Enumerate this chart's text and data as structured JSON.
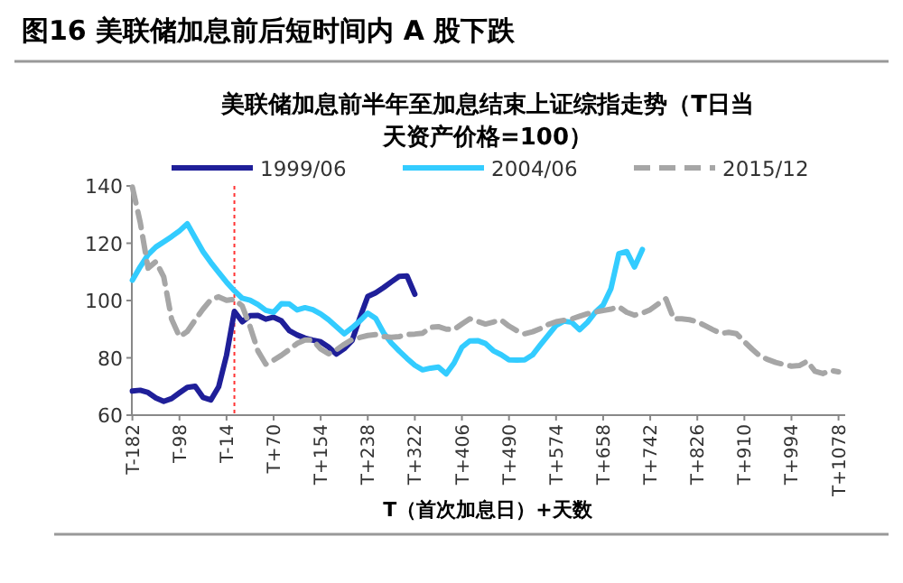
{
  "chart_data": {
    "type": "line",
    "title": "图16 美联储加息前后短时间内 A 股下跌",
    "subtitle": "美联储加息前半年至加息结束上证综指走势（T日当天资产价格=100）",
    "xlabel": "T（首次加息日）+天数",
    "categories": [
      "T-182",
      null,
      null,
      null,
      null,
      null,
      "T-98",
      null,
      null,
      null,
      null,
      null,
      "T-14",
      null,
      null,
      null,
      null,
      null,
      "T+70",
      null,
      null,
      null,
      null,
      null,
      "T+154",
      null,
      null,
      null,
      null,
      null,
      "T+238",
      null,
      null,
      null,
      null,
      null,
      "T+322",
      null,
      null,
      null,
      null,
      null,
      "T+406",
      null,
      null,
      null,
      null,
      null,
      "T+490",
      null,
      null,
      null,
      null,
      null,
      "T+574",
      null,
      null,
      null,
      null,
      null,
      "T+658",
      null,
      null,
      null,
      null,
      null,
      "T+742",
      null,
      null,
      null,
      null,
      null,
      "T+826",
      null,
      null,
      null,
      null,
      null,
      "T+910",
      null,
      null,
      null,
      null,
      null,
      "T+994",
      null,
      null,
      null,
      null,
      null,
      "T+1078"
    ],
    "ylim": [
      60,
      140
    ],
    "yticks": [
      60,
      80,
      100,
      120,
      140
    ],
    "legend": "top",
    "marker": "none",
    "series": [
      {
        "name": "1999/06",
        "color": "#1f1f99",
        "line_style": "solid",
        "values": [
          68.4,
          68.7,
          67.9,
          66,
          64.8,
          65.8,
          67.8,
          69.7,
          70.1,
          66.2,
          65.3,
          69.9,
          80.9,
          96.2,
          92.6,
          94.7,
          94.8,
          93.5,
          94.2,
          92.9,
          89.5,
          88,
          86.9,
          86.2,
          85.6,
          83.8,
          81.3,
          83.2,
          86,
          94,
          101.4,
          102.7,
          104.5,
          106.5,
          108.4,
          108.6,
          102.2,
          null,
          null,
          null,
          null,
          null,
          null,
          null,
          null,
          null,
          null,
          null,
          null,
          null,
          null,
          null,
          null,
          null,
          null,
          null,
          null,
          null,
          null,
          null,
          null,
          null,
          null,
          null,
          null,
          null,
          null,
          null,
          null,
          null,
          null,
          null,
          null,
          null,
          null,
          null,
          null,
          null,
          null,
          null,
          null,
          null,
          null,
          null,
          null,
          null,
          null,
          null,
          null,
          null,
          null
        ]
      },
      {
        "name": "2004/06",
        "color": "#33ccff",
        "line_style": "solid",
        "values": [
          107.1,
          111.8,
          116,
          118.7,
          120.5,
          122.3,
          124.3,
          126.8,
          121.9,
          117.1,
          113.3,
          109.8,
          106.4,
          103.4,
          100.8,
          100.1,
          98.6,
          96.6,
          95.9,
          98.9,
          98.8,
          96.7,
          97.5,
          96.8,
          95.3,
          93.3,
          90.9,
          88.4,
          90.5,
          92.9,
          95.6,
          93.8,
          88.8,
          85.2,
          82.4,
          79.8,
          77.4,
          75.8,
          76.4,
          76.8,
          74.4,
          78.2,
          83.7,
          85.9,
          86,
          85,
          82.5,
          81.1,
          79.3,
          79.2,
          79.3,
          81,
          84.5,
          87.9,
          91.3,
          92.8,
          92.4,
          89.8,
          92.4,
          95.9,
          98.4,
          104.2,
          116.3,
          117.1,
          111.7,
          117.8,
          null,
          null,
          null,
          null,
          null,
          null,
          null,
          null,
          null,
          null,
          null,
          null,
          null,
          null,
          null,
          null,
          null,
          null,
          null,
          null,
          null,
          null,
          null,
          null,
          null
        ]
      },
      {
        "name": "2015/12",
        "color": "#a6a6a6",
        "line_style": "dashed",
        "values": [
          139.6,
          127.3,
          111.3,
          113.6,
          108.2,
          93.5,
          87.4,
          89.2,
          93.2,
          97,
          100.3,
          101.3,
          100.1,
          100.4,
          98.1,
          90.9,
          82.4,
          77.8,
          79.2,
          80.9,
          82.9,
          85,
          86.2,
          86.2,
          83.1,
          81.4,
          82.8,
          84.7,
          86.4,
          87.1,
          87.8,
          88.1,
          87.4,
          87.2,
          87.4,
          88.1,
          88.3,
          88.6,
          90.6,
          90.9,
          90,
          89.9,
          91.8,
          93.6,
          92.7,
          91.8,
          92.5,
          93.2,
          91.1,
          89.5,
          88.4,
          89.1,
          90.2,
          91.6,
          92.6,
          93.1,
          93.6,
          94.5,
          95.4,
          96,
          96.5,
          97,
          97.8,
          95.9,
          94.9,
          95.6,
          96.8,
          98.8,
          100.6,
          93.6,
          93.6,
          93.3,
          92.6,
          91.2,
          89.8,
          88.5,
          88.9,
          88.4,
          85.6,
          83,
          80.6,
          79.4,
          78.4,
          77.7,
          77.1,
          77.3,
          78.8,
          75.3,
          74.5,
          75.6,
          75.1
        ]
      }
    ]
  }
}
